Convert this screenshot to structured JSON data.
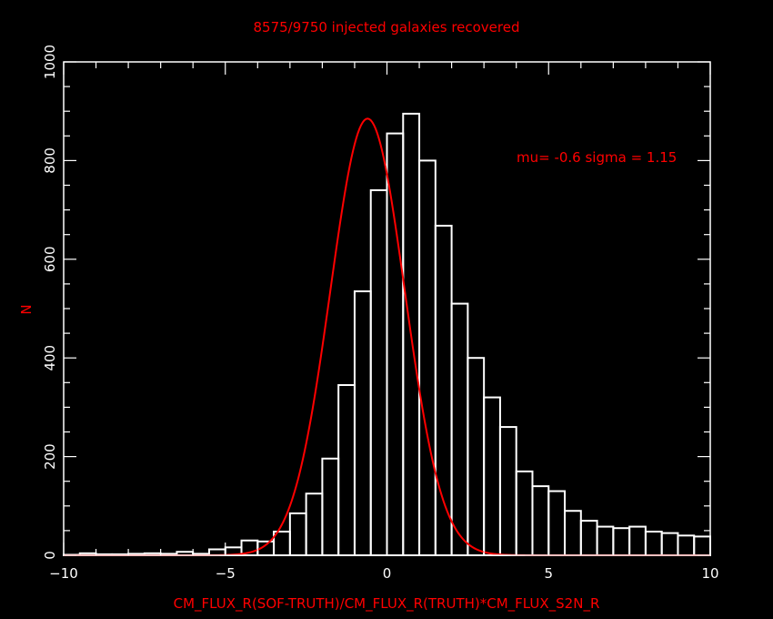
{
  "chart_data": {
    "type": "bar",
    "title": "8575/9750 injected galaxies recovered",
    "xlabel": "CM_FLUX_R(SOF-TRUTH)/CM_FLUX_R(TRUTH)*CM_FLUX_S2N_R",
    "ylabel": "N",
    "xlim": [
      -10,
      10
    ],
    "ylim": [
      0,
      1000
    ],
    "x_ticks": [
      -10,
      -5,
      0,
      5,
      10
    ],
    "y_ticks": [
      0,
      200,
      400,
      600,
      800,
      1000
    ],
    "bin_width": 0.5,
    "bin_starts": [
      -10,
      -9.5,
      -9,
      -8.5,
      -8,
      -7.5,
      -7,
      -6.5,
      -6,
      -5.5,
      -5,
      -4.5,
      -4,
      -3.5,
      -3,
      -2.5,
      -2,
      -1.5,
      -1,
      -0.5,
      0,
      0.5,
      1,
      1.5,
      2,
      2.5,
      3,
      3.5,
      4,
      4.5,
      5,
      5.5,
      6,
      6.5,
      7,
      7.5,
      8,
      8.5,
      9,
      9.5
    ],
    "counts": [
      1,
      4,
      2,
      2,
      3,
      4,
      3,
      7,
      3,
      12,
      16,
      30,
      28,
      48,
      85,
      125,
      196,
      345,
      535,
      740,
      855,
      895,
      800,
      668,
      510,
      400,
      320,
      260,
      170,
      140,
      130,
      90,
      70,
      58,
      55,
      58,
      48,
      45,
      40,
      38
    ],
    "fit": {
      "type": "gaussian",
      "mu": -0.6,
      "sigma": 1.15,
      "peak": 885,
      "label": "mu= -0.6 sigma = 1.15"
    },
    "colors": {
      "background": "#000000",
      "bars": "#ffffff",
      "fit_line": "#ff0000",
      "labels": "#ff0000",
      "axes": "#ffffff"
    }
  }
}
